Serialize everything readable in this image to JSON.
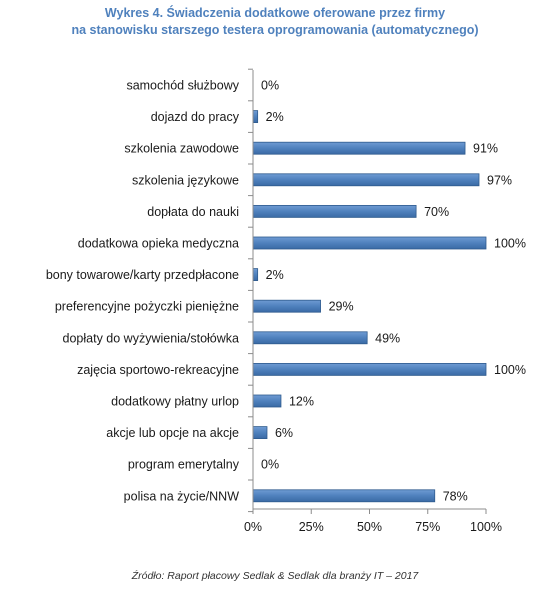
{
  "title_line1": "Wykres 4. Świadczenia dodatkowe oferowane przez firmy",
  "title_line2": "na stanowisku starszego testera oprogramowania (automatycznego)",
  "source": "Źródło: Raport płacowy Sedlak & Sedlak dla branży IT – 2017",
  "colors": {
    "bar": "#4f81bd",
    "bar_edge": "#2f5b8e",
    "title": "#4f81bd"
  },
  "chart_data": {
    "type": "bar",
    "orientation": "horizontal",
    "categories": [
      "samochód służbowy",
      "dojazd do pracy",
      "szkolenia zawodowe",
      "szkolenia językowe",
      "dopłata do nauki",
      "dodatkowa opieka medyczna",
      "bony towarowe/karty przedpłacone",
      "preferencyjne pożyczki pieniężne",
      "dopłaty do wyżywienia/stołówka",
      "zajęcia sportowo-rekreacyjne",
      "dodatkowy płatny urlop",
      "akcje lub opcje na akcje",
      "program emerytalny",
      "polisa na życie/NNW"
    ],
    "values": [
      0,
      2,
      91,
      97,
      70,
      100,
      2,
      29,
      49,
      100,
      12,
      6,
      0,
      78
    ],
    "value_labels": [
      "0%",
      "2%",
      "91%",
      "97%",
      "70%",
      "100%",
      "2%",
      "29%",
      "49%",
      "100%",
      "12%",
      "6%",
      "0%",
      "78%"
    ],
    "xlim": [
      0,
      100
    ],
    "xticks": [
      0,
      25,
      50,
      75,
      100
    ],
    "xtick_labels": [
      "0%",
      "25%",
      "50%",
      "75%",
      "100%"
    ],
    "grid": false,
    "legend": "none"
  }
}
